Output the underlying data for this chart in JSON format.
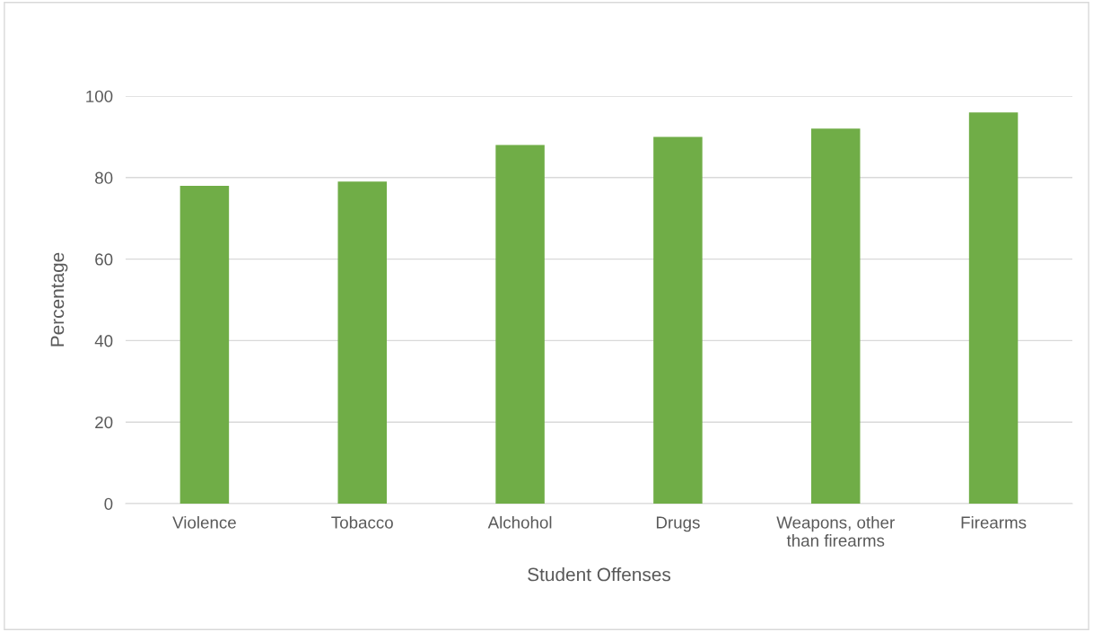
{
  "chart_data": {
    "type": "bar",
    "xlabel": "Student Offenses",
    "ylabel": "Percentage",
    "categories": [
      "Violence",
      "Tobacco",
      "Alchohol",
      "Drugs",
      "Weapons, other\nthan firearms",
      "Firearms"
    ],
    "values": [
      78,
      79,
      88,
      90,
      92,
      96
    ],
    "color": "#70ad47",
    "ylim": [
      0,
      100
    ],
    "yticks": [
      0,
      20,
      40,
      60,
      80,
      100
    ],
    "grid": "y",
    "legend": false
  }
}
